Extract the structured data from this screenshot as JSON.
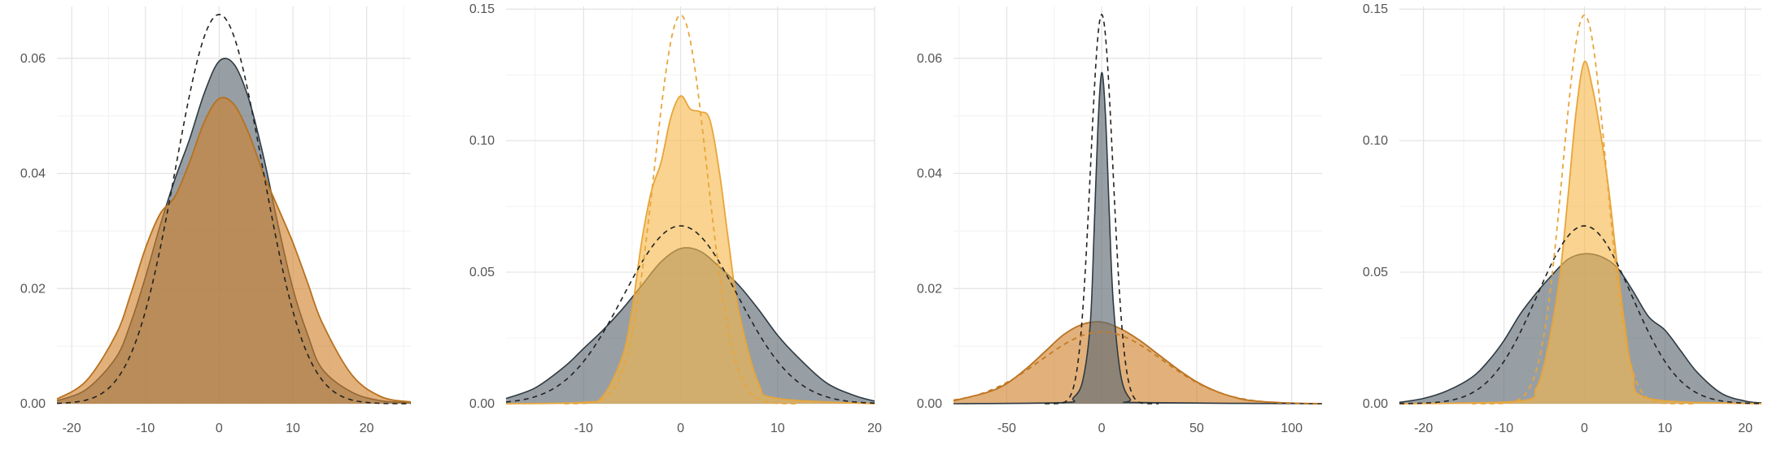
{
  "colors": {
    "gray": "#5f6b74",
    "gray_line": "#2f3a42",
    "orange": "#d0812a",
    "orange_line": "#b8711f",
    "yellow": "#f5b84a",
    "yellow_line": "#e8a53a",
    "dashed": "#222222"
  },
  "chart_data": [
    {
      "type": "area",
      "title": "",
      "xlabel": "",
      "ylabel": "",
      "xlim": [
        -22,
        26
      ],
      "ylim": [
        0,
        0.069
      ],
      "x_ticks": [
        -20,
        -10,
        0,
        10,
        20
      ],
      "x_tick_labels": [
        "-20",
        "-10",
        "0",
        "10",
        "20"
      ],
      "y_ticks": [
        0.0,
        0.02,
        0.04,
        0.06
      ],
      "y_tick_labels": [
        "0.00",
        "0.02",
        "0.04",
        "0.06"
      ],
      "grid": true,
      "series": [
        {
          "kind": "density",
          "color_key": "gray",
          "x": [
            -22,
            -18,
            -14,
            -12,
            -10,
            -8,
            -6,
            -4,
            -2,
            0,
            2,
            4,
            6,
            8,
            10,
            12,
            14,
            18,
            22,
            26
          ],
          "y": [
            0.0005,
            0.0025,
            0.008,
            0.014,
            0.022,
            0.031,
            0.039,
            0.046,
            0.054,
            0.0595,
            0.059,
            0.053,
            0.043,
            0.031,
            0.02,
            0.012,
            0.006,
            0.002,
            0.0005,
            0.0002
          ]
        },
        {
          "kind": "density",
          "color_key": "orange",
          "x": [
            -22,
            -18,
            -14,
            -12,
            -10,
            -8,
            -6,
            -4,
            -2,
            0,
            2,
            4,
            6,
            8,
            10,
            12,
            14,
            18,
            22,
            26
          ],
          "y": [
            0.0008,
            0.004,
            0.012,
            0.019,
            0.027,
            0.033,
            0.036,
            0.042,
            0.049,
            0.053,
            0.052,
            0.047,
            0.04,
            0.034,
            0.028,
            0.021,
            0.014,
            0.005,
            0.0012,
            0.0003
          ]
        },
        {
          "kind": "normal",
          "color_key": "dashed",
          "mean": 0,
          "sd": 5.9,
          "x_range": [
            -22,
            26
          ]
        }
      ]
    },
    {
      "type": "area",
      "title": "",
      "xlabel": "",
      "ylabel": "",
      "xlim": [
        -18,
        20
      ],
      "ylim": [
        0,
        0.151
      ],
      "x_ticks": [
        -10,
        0,
        10,
        20
      ],
      "x_tick_labels": [
        "-10",
        "0",
        "10",
        "20"
      ],
      "y_ticks": [
        0.0,
        0.05,
        0.1,
        0.15
      ],
      "y_tick_labels": [
        "0.00",
        "0.05",
        "0.10",
        "0.15"
      ],
      "grid": true,
      "series": [
        {
          "kind": "density",
          "color_key": "gray",
          "x": [
            -18,
            -15,
            -12,
            -10,
            -8,
            -6,
            -4,
            -2,
            0,
            2,
            4,
            6,
            8,
            10,
            12,
            15,
            18,
            20
          ],
          "y": [
            0.002,
            0.006,
            0.014,
            0.021,
            0.028,
            0.036,
            0.045,
            0.054,
            0.059,
            0.058,
            0.052,
            0.045,
            0.036,
            0.026,
            0.018,
            0.008,
            0.003,
            0.001
          ]
        },
        {
          "kind": "density",
          "color_key": "yellow",
          "x": [
            -18,
            -10,
            -8,
            -6,
            -5,
            -4,
            -3,
            -2,
            -1,
            0,
            1,
            2,
            3,
            4,
            5,
            6,
            8,
            10,
            20
          ],
          "y": [
            0,
            0.0005,
            0.003,
            0.018,
            0.036,
            0.062,
            0.081,
            0.092,
            0.109,
            0.117,
            0.112,
            0.111,
            0.108,
            0.088,
            0.06,
            0.035,
            0.008,
            0.002,
            0
          ]
        },
        {
          "kind": "normal",
          "color_key": "gray_line",
          "mean": 0,
          "sd": 5.9,
          "x_range": [
            -18,
            20
          ]
        },
        {
          "kind": "normal",
          "color_key": "yellow_line",
          "mean": 0,
          "sd": 2.7,
          "x_range": [
            -12,
            12
          ]
        }
      ]
    },
    {
      "type": "area",
      "title": "",
      "xlabel": "",
      "ylabel": "",
      "xlim": [
        -78,
        116
      ],
      "ylim": [
        0,
        0.069
      ],
      "x_ticks": [
        -50,
        0,
        50,
        100
      ],
      "x_tick_labels": [
        "-50",
        "0",
        "50",
        "100"
      ],
      "y_ticks": [
        0.0,
        0.02,
        0.04,
        0.06
      ],
      "y_tick_labels": [
        "0.00",
        "0.02",
        "0.04",
        "0.06"
      ],
      "grid": true,
      "series": [
        {
          "kind": "density",
          "color_key": "orange",
          "x": [
            -78,
            -60,
            -50,
            -40,
            -30,
            -20,
            -10,
            0,
            10,
            20,
            30,
            40,
            50,
            60,
            70,
            80,
            100,
            116
          ],
          "y": [
            0.0005,
            0.002,
            0.0035,
            0.006,
            0.009,
            0.012,
            0.0138,
            0.0142,
            0.013,
            0.011,
            0.0085,
            0.006,
            0.0038,
            0.0022,
            0.0011,
            0.0005,
            0.0001,
            0
          ]
        },
        {
          "kind": "density",
          "color_key": "gray",
          "x": [
            -78,
            -20,
            -15,
            -10,
            -6,
            -4,
            -2,
            0,
            2,
            4,
            6,
            10,
            15,
            20,
            116
          ],
          "y": [
            0,
            0.0002,
            0.001,
            0.004,
            0.014,
            0.03,
            0.048,
            0.0575,
            0.05,
            0.033,
            0.018,
            0.005,
            0.0008,
            0.0002,
            0
          ]
        },
        {
          "kind": "normal",
          "color_key": "dashed",
          "mean": 0,
          "sd": 5.9,
          "x_range": [
            -30,
            30
          ]
        },
        {
          "kind": "normal",
          "color_key": "orange_line",
          "mean": 0,
          "sd": 32,
          "x_range": [
            -78,
            116
          ]
        }
      ]
    },
    {
      "type": "area",
      "title": "",
      "xlabel": "",
      "ylabel": "",
      "xlim": [
        -23,
        22
      ],
      "ylim": [
        0,
        0.151
      ],
      "x_ticks": [
        -20,
        -10,
        0,
        10,
        20
      ],
      "x_tick_labels": [
        "-20",
        "-10",
        "0",
        "10",
        "20"
      ],
      "y_ticks": [
        0.0,
        0.05,
        0.1,
        0.15
      ],
      "y_tick_labels": [
        "0.00",
        "0.05",
        "0.10",
        "0.15"
      ],
      "grid": true,
      "series": [
        {
          "kind": "density",
          "color_key": "gray",
          "x": [
            -23,
            -20,
            -17,
            -14,
            -12,
            -10,
            -8,
            -6,
            -4,
            -2,
            0,
            2,
            4,
            6,
            8,
            10,
            12,
            14,
            17,
            20,
            22
          ],
          "y": [
            0.0005,
            0.002,
            0.005,
            0.01,
            0.016,
            0.024,
            0.034,
            0.042,
            0.049,
            0.055,
            0.057,
            0.056,
            0.052,
            0.043,
            0.033,
            0.028,
            0.02,
            0.012,
            0.004,
            0.001,
            0.0003
          ]
        },
        {
          "kind": "density",
          "color_key": "yellow",
          "x": [
            -23,
            -8,
            -6,
            -5,
            -4,
            -3,
            -2,
            -1,
            0,
            1,
            2,
            3,
            4,
            5,
            6,
            8,
            22
          ],
          "y": [
            0,
            0.001,
            0.006,
            0.015,
            0.03,
            0.05,
            0.08,
            0.112,
            0.13,
            0.12,
            0.103,
            0.082,
            0.055,
            0.03,
            0.012,
            0.002,
            0
          ]
        },
        {
          "kind": "normal",
          "color_key": "dashed",
          "mean": 0,
          "sd": 5.9,
          "x_range": [
            -23,
            22
          ]
        },
        {
          "kind": "normal",
          "color_key": "yellow_line",
          "mean": 0,
          "sd": 2.7,
          "x_range": [
            -14,
            14
          ]
        }
      ]
    }
  ]
}
